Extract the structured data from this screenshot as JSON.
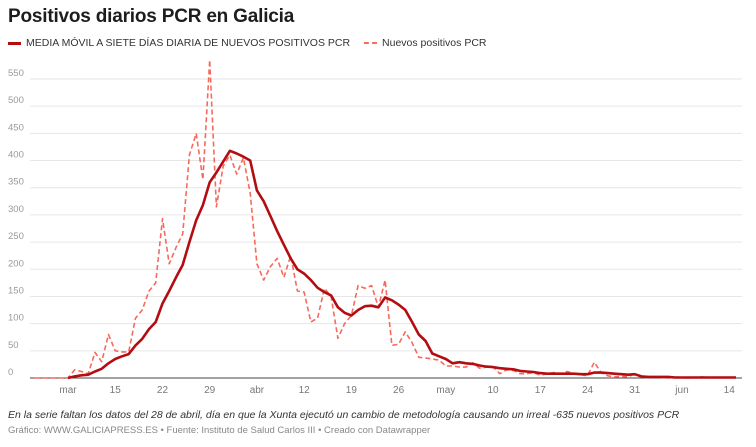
{
  "chart_data": {
    "type": "line",
    "title": "Positivos diarios PCR en Galicia",
    "xlabel": "",
    "ylabel": "",
    "ylim": [
      0,
      550
    ],
    "yticks": [
      0,
      50,
      100,
      150,
      200,
      250,
      300,
      350,
      400,
      450,
      500,
      550
    ],
    "grid": true,
    "legend_position": "top-left",
    "xticks": [
      {
        "date": "03-08",
        "label": "mar"
      },
      {
        "date": "03-15",
        "label": "15"
      },
      {
        "date": "03-22",
        "label": "22"
      },
      {
        "date": "03-29",
        "label": "29"
      },
      {
        "date": "04-05",
        "label": "abr"
      },
      {
        "date": "04-12",
        "label": "12"
      },
      {
        "date": "04-19",
        "label": "19"
      },
      {
        "date": "04-26",
        "label": "26"
      },
      {
        "date": "05-03",
        "label": "may"
      },
      {
        "date": "05-10",
        "label": "10"
      },
      {
        "date": "05-17",
        "label": "17"
      },
      {
        "date": "05-24",
        "label": "24"
      },
      {
        "date": "05-31",
        "label": "31"
      },
      {
        "date": "06-07",
        "label": "jun"
      },
      {
        "date": "06-14",
        "label": "14"
      }
    ],
    "x": [
      "03-03",
      "03-04",
      "03-05",
      "03-06",
      "03-07",
      "03-08",
      "03-09",
      "03-10",
      "03-11",
      "03-12",
      "03-13",
      "03-14",
      "03-15",
      "03-16",
      "03-17",
      "03-18",
      "03-19",
      "03-20",
      "03-21",
      "03-22",
      "03-23",
      "03-24",
      "03-25",
      "03-26",
      "03-27",
      "03-28",
      "03-29",
      "03-30",
      "03-31",
      "04-01",
      "04-02",
      "04-03",
      "04-04",
      "04-05",
      "04-06",
      "04-07",
      "04-08",
      "04-09",
      "04-10",
      "04-11",
      "04-12",
      "04-13",
      "04-14",
      "04-15",
      "04-16",
      "04-17",
      "04-18",
      "04-19",
      "04-20",
      "04-21",
      "04-22",
      "04-23",
      "04-24",
      "04-25",
      "04-26",
      "04-27",
      "04-28",
      "04-29",
      "04-30",
      "05-01",
      "05-02",
      "05-03",
      "05-04",
      "05-05",
      "05-06",
      "05-07",
      "05-08",
      "05-09",
      "05-10",
      "05-11",
      "05-12",
      "05-13",
      "05-14",
      "05-15",
      "05-16",
      "05-17",
      "05-18",
      "05-19",
      "05-20",
      "05-21",
      "05-22",
      "05-23",
      "05-24",
      "05-25",
      "05-26",
      "05-27",
      "05-28",
      "05-29",
      "05-30",
      "05-31",
      "06-01",
      "06-02",
      "06-03",
      "06-04",
      "06-05",
      "06-06",
      "06-07",
      "06-08",
      "06-09",
      "06-10",
      "06-11",
      "06-12",
      "06-13",
      "06-14",
      "06-15"
    ],
    "series": [
      {
        "name": "MEDIA MÓVIL A SIETE DÍAS DIARIA DE NUEVOS POSITIVOS PCR",
        "color": "#b30d12",
        "style": "solid",
        "values": [
          null,
          null,
          null,
          null,
          null,
          0,
          3,
          5,
          6,
          12,
          17,
          27,
          35,
          40,
          44,
          60,
          72,
          90,
          103,
          137,
          160,
          185,
          208,
          250,
          290,
          318,
          360,
          378,
          398,
          418,
          413,
          407,
          400,
          345,
          325,
          298,
          270,
          245,
          220,
          200,
          192,
          180,
          166,
          158,
          152,
          130,
          120,
          115,
          125,
          132,
          133,
          130,
          148,
          143,
          135,
          125,
          103,
          80,
          68,
          45,
          40,
          35,
          27,
          29,
          27,
          26,
          23,
          21,
          20,
          18,
          17,
          16,
          13,
          12,
          11,
          9,
          8,
          8,
          8,
          8,
          8,
          7,
          7,
          10,
          10,
          9,
          8,
          7,
          6,
          7,
          3,
          2,
          2,
          2,
          2,
          1,
          1,
          1,
          1,
          1,
          1,
          1,
          1,
          1,
          1
        ]
      },
      {
        "name": "Nuevos positivos PCR",
        "color": "#f8695c",
        "style": "dashed",
        "values": [
          0,
          0,
          0,
          0,
          0,
          0,
          15,
          12,
          8,
          47,
          30,
          80,
          50,
          48,
          48,
          110,
          125,
          160,
          175,
          293,
          210,
          240,
          265,
          410,
          450,
          365,
          585,
          315,
          390,
          410,
          375,
          405,
          340,
          210,
          180,
          205,
          220,
          185,
          225,
          160,
          158,
          103,
          110,
          165,
          150,
          73,
          100,
          115,
          170,
          165,
          170,
          130,
          180,
          60,
          62,
          85,
          65,
          38,
          37,
          35,
          33,
          22,
          22,
          20,
          20,
          28,
          18,
          20,
          20,
          8,
          15,
          14,
          8,
          8,
          10,
          5,
          8,
          10,
          7,
          12,
          8,
          6,
          4,
          29,
          10,
          4,
          2,
          3,
          2,
          8,
          1,
          1,
          2,
          1,
          0,
          2,
          1,
          0,
          1,
          2,
          1,
          1,
          0,
          1,
          1
        ]
      }
    ]
  },
  "footer": {
    "note": "En la serie faltan los datos del 28 de abril, día en que la Xunta ejecutó un cambio de metodología causando un irreal -635 nuevos positivos PCR",
    "credit": "Gráfico: WWW.GALICIAPRESS.ES • Fuente: Instituto de Salud Carlos III • Creado con Datawrapper"
  }
}
